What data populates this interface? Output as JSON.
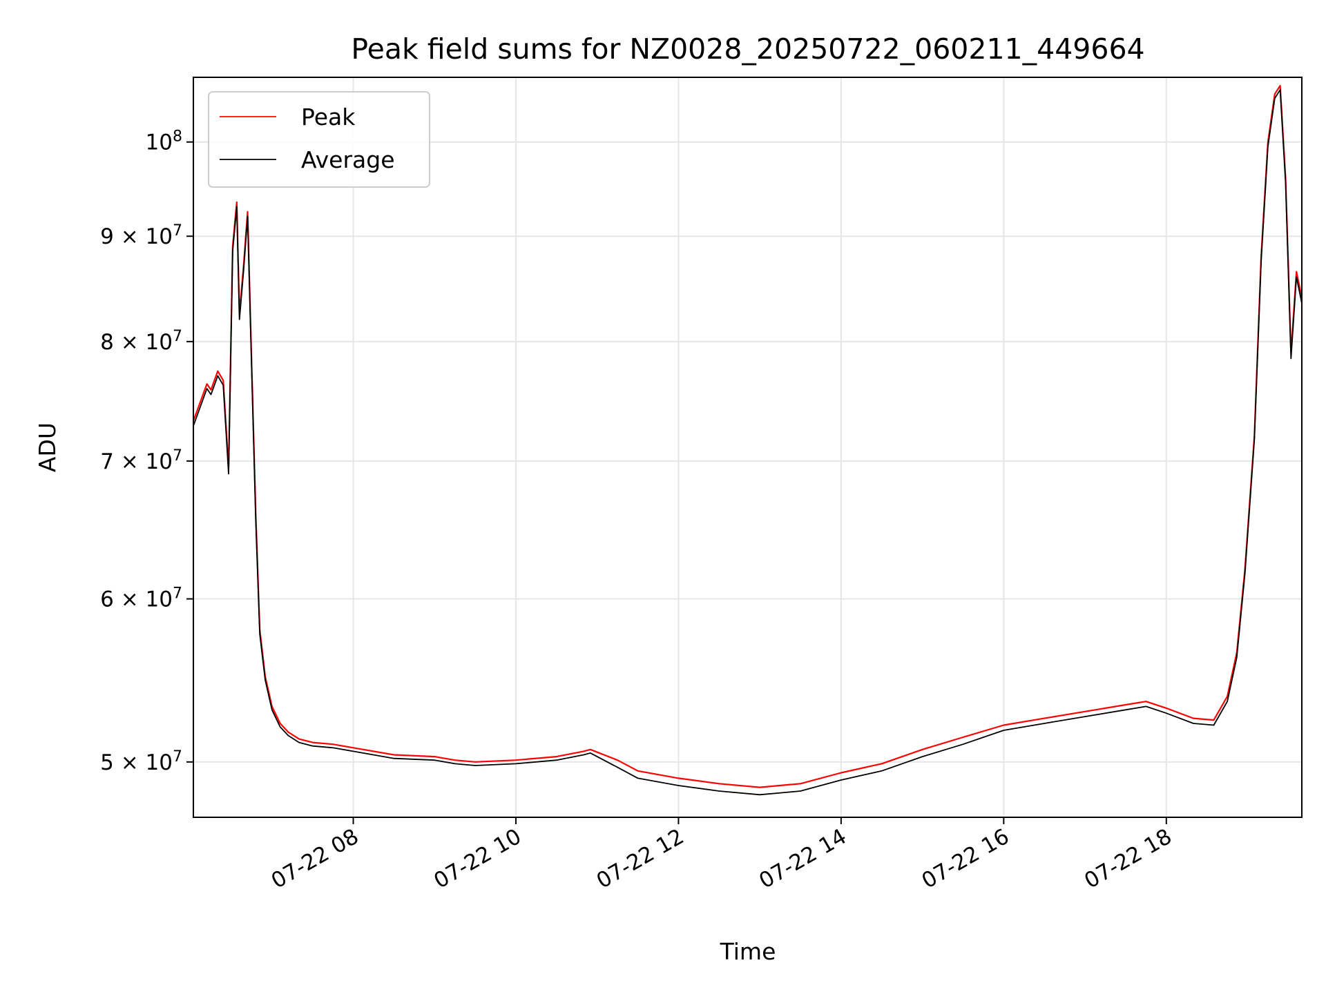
{
  "chart_data": {
    "type": "line",
    "title": "Peak field sums for NZ0028_20250722_060211_449664",
    "xlabel": "Time",
    "ylabel": "ADU",
    "yscale": "log",
    "grid": true,
    "legend_position": "upper-left",
    "xlim": [
      "07-22 06:02",
      "07-22 19:40"
    ],
    "ylim": [
      47000000,
      107500000
    ],
    "x_ticks": [
      {
        "value": "07-22 08:00",
        "label": "07-22 08"
      },
      {
        "value": "07-22 10:00",
        "label": "07-22 10"
      },
      {
        "value": "07-22 12:00",
        "label": "07-22 12"
      },
      {
        "value": "07-22 14:00",
        "label": "07-22 14"
      },
      {
        "value": "07-22 16:00",
        "label": "07-22 16"
      },
      {
        "value": "07-22 18:00",
        "label": "07-22 18"
      }
    ],
    "y_ticks": [
      {
        "value": 50000000,
        "base": "5",
        "exp": "7",
        "kind": "mult"
      },
      {
        "value": 60000000,
        "base": "6",
        "exp": "7",
        "kind": "mult"
      },
      {
        "value": 70000000,
        "base": "7",
        "exp": "7",
        "kind": "mult"
      },
      {
        "value": 80000000,
        "base": "8",
        "exp": "7",
        "kind": "mult"
      },
      {
        "value": 90000000,
        "base": "9",
        "exp": "7",
        "kind": "mult"
      },
      {
        "value": 100000000,
        "base": "10",
        "exp": "8",
        "kind": "pow"
      }
    ],
    "series": [
      {
        "name": "Peak",
        "color": "#ff0000",
        "x": [
          "07-22 06:02",
          "07-22 06:15",
          "07-22 06:12",
          "07-22 06:20",
          "07-22 06:24",
          "07-22 06:28",
          "07-22 06:31",
          "07-22 06:34",
          "07-22 06:36",
          "07-22 06:39",
          "07-22 06:42",
          "07-22 06:45",
          "07-22 06:48",
          "07-22 06:51",
          "07-22 06:55",
          "07-22 07:00",
          "07-22 07:06",
          "07-22 07:12",
          "07-22 07:20",
          "07-22 07:30",
          "07-22 07:45",
          "07-22 08:00",
          "07-22 08:30",
          "07-22 09:00",
          "07-22 09:15",
          "07-22 09:30",
          "07-22 10:00",
          "07-22 10:30",
          "07-22 10:50",
          "07-22 10:55",
          "07-22 11:15",
          "07-22 11:30",
          "07-22 12:00",
          "07-22 12:30",
          "07-22 13:00",
          "07-22 13:30",
          "07-22 14:00",
          "07-22 14:30",
          "07-22 15:00",
          "07-22 15:30",
          "07-22 16:00",
          "07-22 16:30",
          "07-22 17:00",
          "07-22 17:30",
          "07-22 17:45",
          "07-22 18:00",
          "07-22 18:20",
          "07-22 18:35",
          "07-22 18:45",
          "07-22 18:52",
          "07-22 18:58",
          "07-22 19:05",
          "07-22 19:10",
          "07-22 19:15",
          "07-22 19:20",
          "07-22 19:24",
          "07-22 19:28",
          "07-22 19:32",
          "07-22 19:36",
          "07-22 19:40"
        ],
        "values": [
          73200000,
          75800000,
          76300000,
          77400000,
          76600000,
          69500000,
          89000000,
          93500000,
          82500000,
          87000000,
          92500000,
          78000000,
          66000000,
          58000000,
          55000000,
          53200000,
          52200000,
          51700000,
          51300000,
          51100000,
          51000000,
          50800000,
          50400000,
          50300000,
          50100000,
          50000000,
          50100000,
          50300000,
          50600000,
          50700000,
          50100000,
          49500000,
          49100000,
          48800000,
          48600000,
          48800000,
          49400000,
          49900000,
          50700000,
          51400000,
          52100000,
          52500000,
          52900000,
          53300000,
          53500000,
          53100000,
          52500000,
          52400000,
          53800000,
          56500000,
          62000000,
          72000000,
          88000000,
          100000000,
          105500000,
          106500000,
          96000000,
          79000000,
          86500000,
          84000000
        ]
      },
      {
        "name": "Average",
        "color": "#000000",
        "x": [
          "07-22 06:02",
          "07-22 06:15",
          "07-22 06:12",
          "07-22 06:20",
          "07-22 06:24",
          "07-22 06:28",
          "07-22 06:31",
          "07-22 06:34",
          "07-22 06:36",
          "07-22 06:39",
          "07-22 06:42",
          "07-22 06:45",
          "07-22 06:48",
          "07-22 06:51",
          "07-22 06:55",
          "07-22 07:00",
          "07-22 07:06",
          "07-22 07:12",
          "07-22 07:20",
          "07-22 07:30",
          "07-22 07:45",
          "07-22 08:00",
          "07-22 08:30",
          "07-22 09:00",
          "07-22 09:15",
          "07-22 09:30",
          "07-22 10:00",
          "07-22 10:30",
          "07-22 10:50",
          "07-22 10:55",
          "07-22 11:15",
          "07-22 11:30",
          "07-22 12:00",
          "07-22 12:30",
          "07-22 13:00",
          "07-22 13:30",
          "07-22 14:00",
          "07-22 14:30",
          "07-22 15:00",
          "07-22 15:30",
          "07-22 16:00",
          "07-22 16:30",
          "07-22 17:00",
          "07-22 17:30",
          "07-22 17:45",
          "07-22 18:00",
          "07-22 18:20",
          "07-22 18:35",
          "07-22 18:45",
          "07-22 18:52",
          "07-22 18:58",
          "07-22 19:05",
          "07-22 19:10",
          "07-22 19:15",
          "07-22 19:20",
          "07-22 19:24",
          "07-22 19:28",
          "07-22 19:32",
          "07-22 19:36",
          "07-22 19:40"
        ],
        "values": [
          72800000,
          75400000,
          75900000,
          77000000,
          76200000,
          69000000,
          88500000,
          93000000,
          82000000,
          86500000,
          92000000,
          77500000,
          65500000,
          57700000,
          54800000,
          53000000,
          52000000,
          51500000,
          51100000,
          50900000,
          50800000,
          50600000,
          50200000,
          50100000,
          49900000,
          49800000,
          49900000,
          50100000,
          50400000,
          50500000,
          49700000,
          49100000,
          48700000,
          48400000,
          48200000,
          48400000,
          49000000,
          49500000,
          50300000,
          51000000,
          51800000,
          52200000,
          52600000,
          53000000,
          53200000,
          52800000,
          52200000,
          52100000,
          53500000,
          56200000,
          61700000,
          71700000,
          87500000,
          99500000,
          105000000,
          106000000,
          95500000,
          78500000,
          86000000,
          83500000
        ]
      }
    ]
  }
}
